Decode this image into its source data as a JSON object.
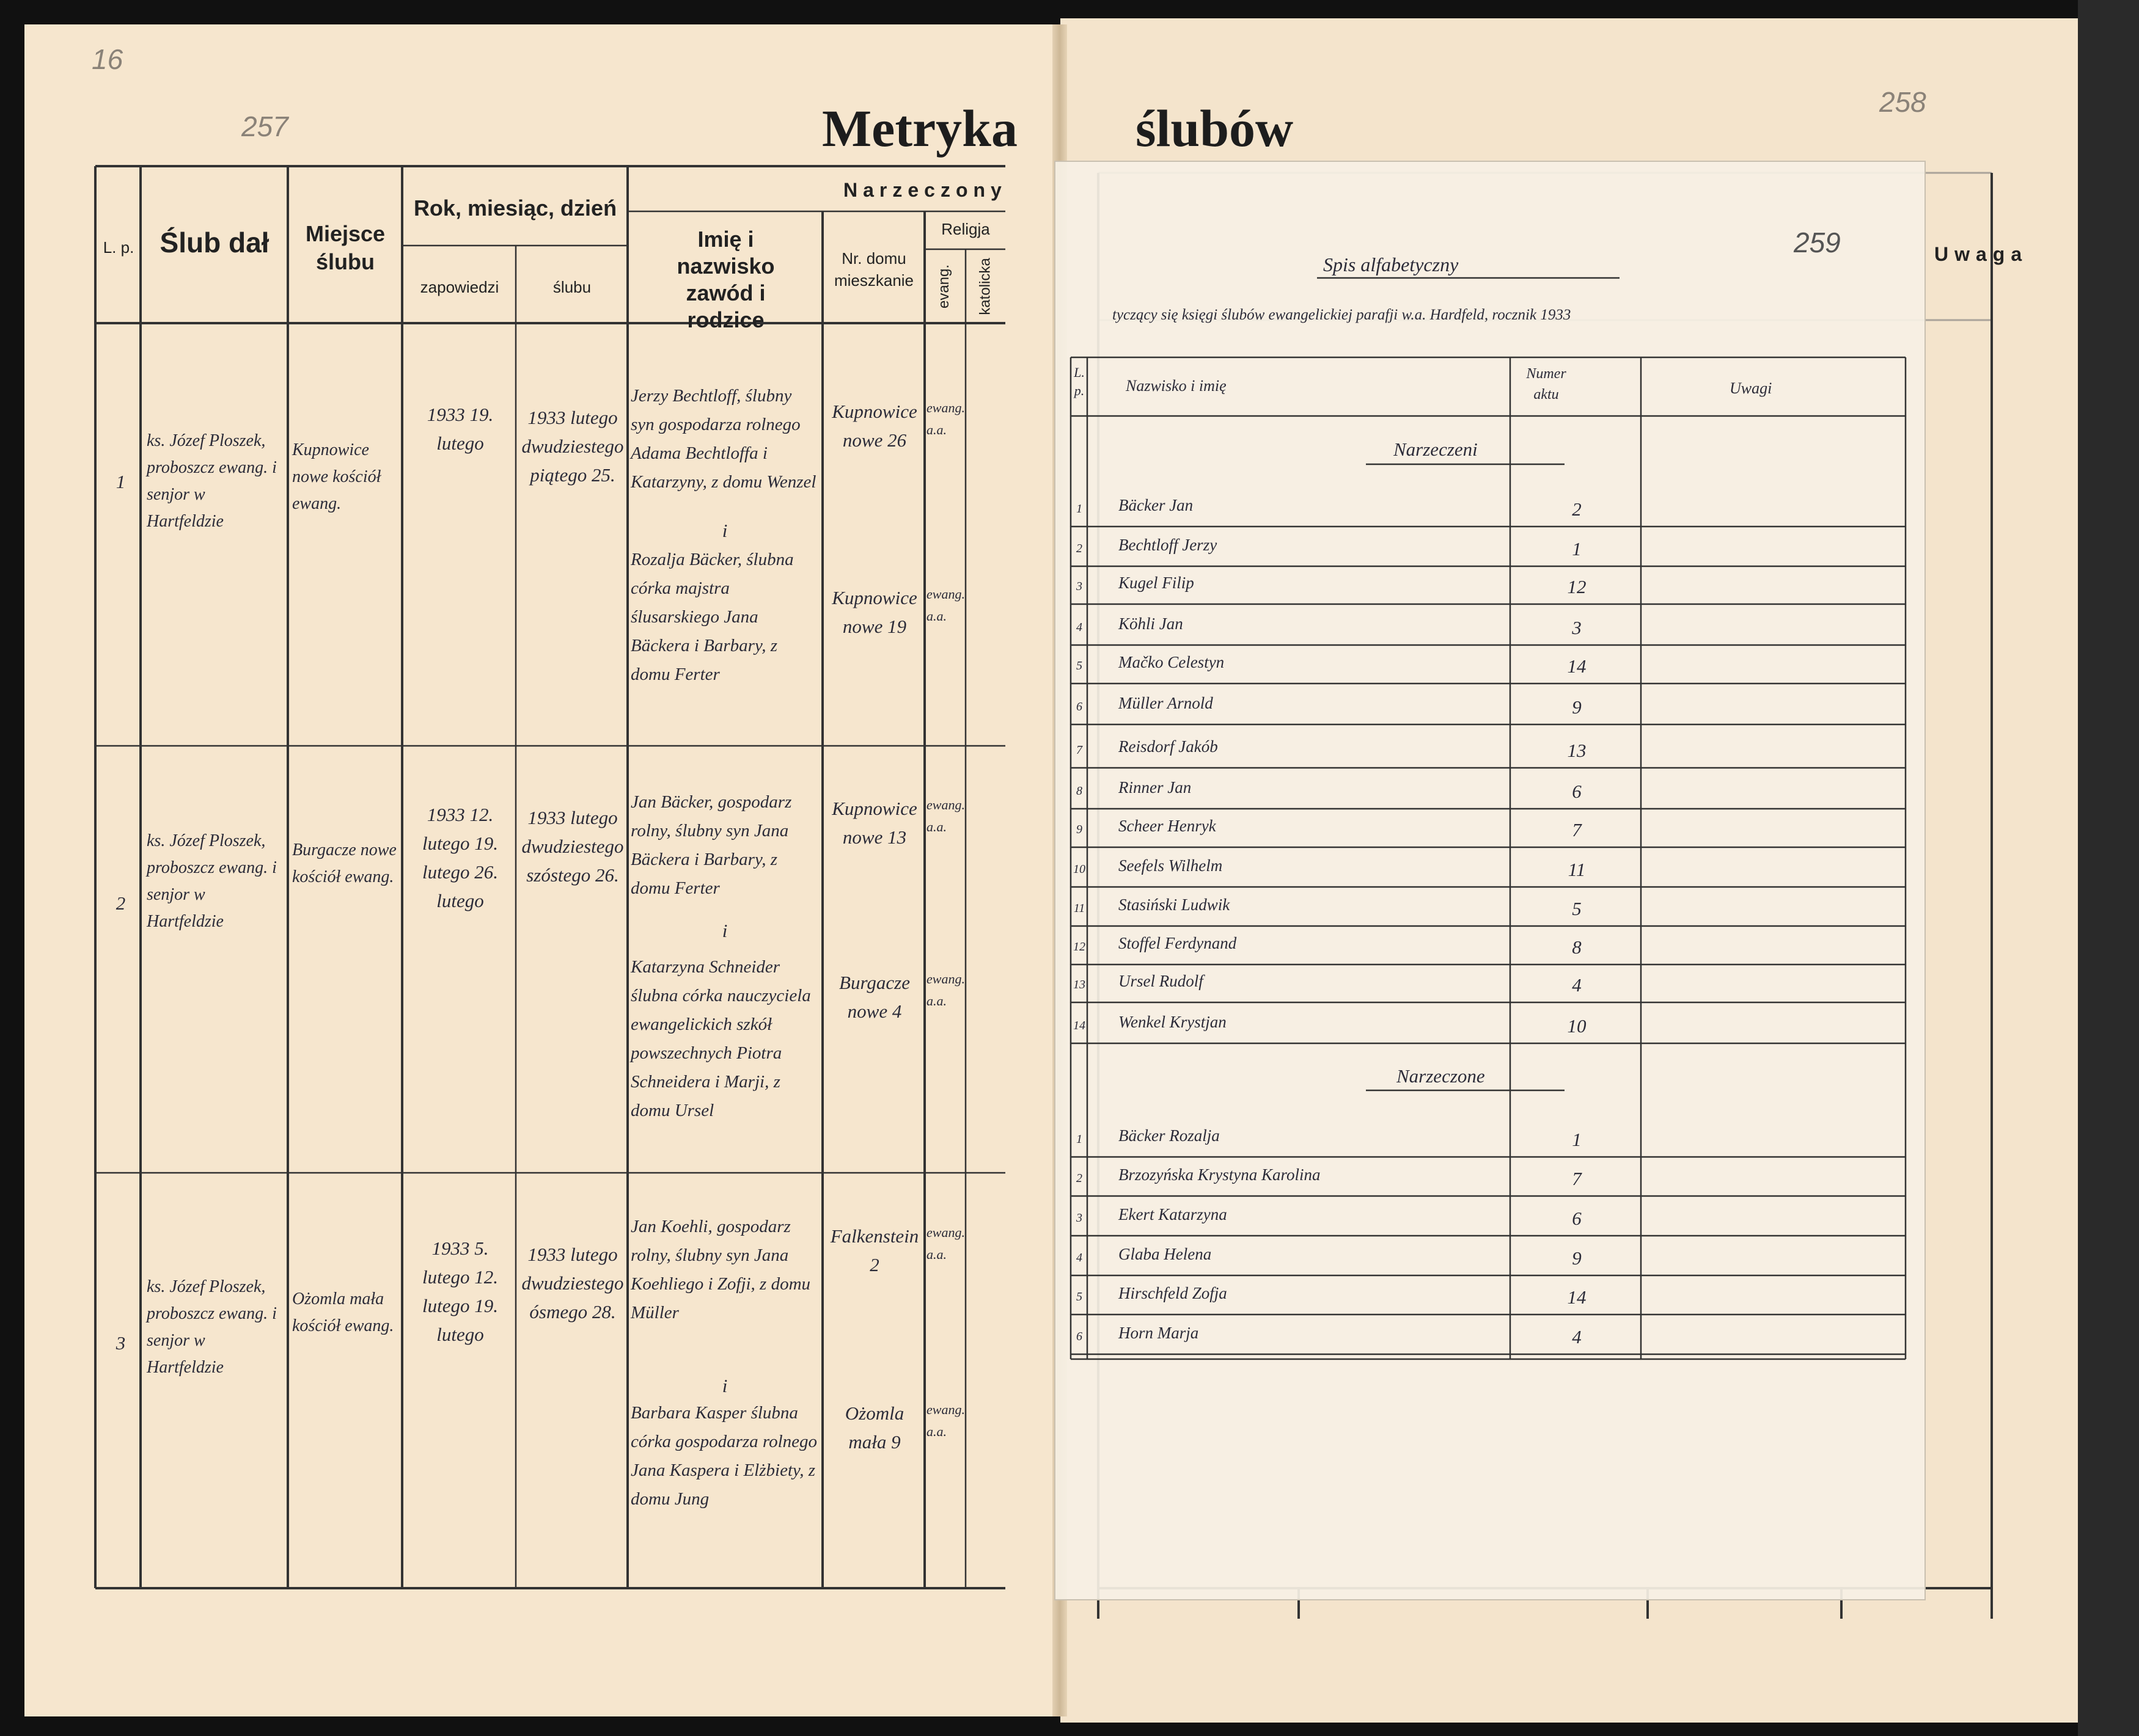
{
  "page_numbers": {
    "pencil": "16",
    "left": "257",
    "right": "258",
    "index": "259"
  },
  "title": {
    "left": "Metryka",
    "right": "ślubów"
  },
  "table": {
    "headers": {
      "lp": "L. p.",
      "officiant": "Ślub dał",
      "place": "Miejsce ślubu",
      "dates": "Rok, miesiąc, dzień",
      "banns": "zapowiedzi",
      "wedding": "ślubu",
      "groom_group": "Narzeczony",
      "names": "Imię i nazwisko zawód i rodzice",
      "house": "Nr. domu mieszkanie",
      "religion": "Religja",
      "evang": "evang.",
      "catholic": "katolicka"
    },
    "rows": [
      {
        "lp": "1",
        "officiant": "ks. Józef Ploszek, proboszcz ewang. i senjor w Hartfeldzie",
        "place": "Kupnowice nowe kościół ewang.",
        "banns": "1933 19. lutego",
        "date": "1933 lutego dwudziestego piątego 25.",
        "groom": "Jerzy Bechtloff, ślubny syn gospodarza rolnego Adama Bechtloffa i Katarzyny, z domu Wenzel",
        "groom_house": "Kupnowice nowe 26",
        "groom_religion": "ewang. a.a.",
        "conjunction": "i",
        "bride": "Rozalja Bäcker, ślubna córka majstra ślusarskiego Jana Bäckera i Barbary, z domu Ferter",
        "bride_house": "Kupnowice nowe 19",
        "bride_religion": "ewang. a.a."
      },
      {
        "lp": "2",
        "officiant": "ks. Józef Ploszek, proboszcz ewang. i senjor w Hartfeldzie",
        "place": "Burgacze nowe kościół ewang.",
        "banns": "1933 12. lutego 19. lutego 26. lutego",
        "date": "1933 lutego dwudziestego szóstego 26.",
        "groom": "Jan Bäcker, gospodarz rolny, ślubny syn Jana Bäckera i Barbary, z domu Ferter",
        "groom_house": "Kupnowice nowe 13",
        "groom_religion": "ewang. a.a.",
        "conjunction": "i",
        "bride": "Katarzyna Schneider ślubna córka nauczyciela ewangelickich szkół powszechnych Piotra Schneidera i Marji, z domu Ursel",
        "bride_house": "Burgacze nowe 4",
        "bride_religion": "ewang. a.a."
      },
      {
        "lp": "3",
        "officiant": "ks. Józef Ploszek, proboszcz ewang. i senjor w Hartfeldzie",
        "place": "Ożomla mała kościół ewang.",
        "banns": "1933 5. lutego 12. lutego 19. lutego",
        "date": "1933 lutego dwudziestego ósmego 28.",
        "groom": "Jan Koehli, gospodarz rolny, ślubny syn Jana Koehliego i Zofji, z domu Müller",
        "groom_house": "Falkenstein 2",
        "groom_religion": "ewang. a.a.",
        "conjunction": "i",
        "bride": "Barbara Kasper ślubna córka gospodarza rolnego Jana Kaspera i Elżbiety, z domu Jung",
        "bride_house": "Ożomla mała 9",
        "bride_religion": "ewang. a.a."
      }
    ]
  },
  "right_page": {
    "header": "Uwaga"
  },
  "index": {
    "title": "Spis alfabetyczny",
    "subtitle": "tyczący się księgi ślubów ewangelickiej parafji w.a. Hardfeld, rocznik 1933",
    "headers": {
      "lp": "L. p.",
      "name": "Nazwisko i imię",
      "number": "Numer aktu",
      "notes": "Uwagi"
    },
    "grooms_heading": "Narzeczeni",
    "grooms": [
      {
        "lp": "1",
        "name": "Bäcker Jan",
        "number": "2"
      },
      {
        "lp": "2",
        "name": "Bechtloff Jerzy",
        "number": "1"
      },
      {
        "lp": "3",
        "name": "Kugel Filip",
        "number": "12"
      },
      {
        "lp": "4",
        "name": "Köhli Jan",
        "number": "3"
      },
      {
        "lp": "5",
        "name": "Mačko Celestyn",
        "number": "14"
      },
      {
        "lp": "6",
        "name": "Müller Arnold",
        "number": "9"
      },
      {
        "lp": "7",
        "name": "Reisdorf Jakób",
        "number": "13"
      },
      {
        "lp": "8",
        "name": "Rinner Jan",
        "number": "6"
      },
      {
        "lp": "9",
        "name": "Scheer Henryk",
        "number": "7"
      },
      {
        "lp": "10",
        "name": "Seefels Wilhelm",
        "number": "11"
      },
      {
        "lp": "11",
        "name": "Stasiński Ludwik",
        "number": "5"
      },
      {
        "lp": "12",
        "name": "Stoffel Ferdynand",
        "number": "8"
      },
      {
        "lp": "13",
        "name": "Ursel Rudolf",
        "number": "4"
      },
      {
        "lp": "14",
        "name": "Wenkel Krystjan",
        "number": "10"
      }
    ],
    "brides_heading": "Narzeczone",
    "brides": [
      {
        "lp": "1",
        "name": "Bäcker Rozalja",
        "number": "1"
      },
      {
        "lp": "2",
        "name": "Brzozyńska Krystyna Karolina",
        "number": "7"
      },
      {
        "lp": "3",
        "name": "Ekert Katarzyna",
        "number": "6"
      },
      {
        "lp": "4",
        "name": "Glaba Helena",
        "number": "9"
      },
      {
        "lp": "5",
        "name": "Hirschfeld Zofja",
        "number": "14"
      },
      {
        "lp": "6",
        "name": "Horn Marja",
        "number": "4"
      }
    ]
  }
}
